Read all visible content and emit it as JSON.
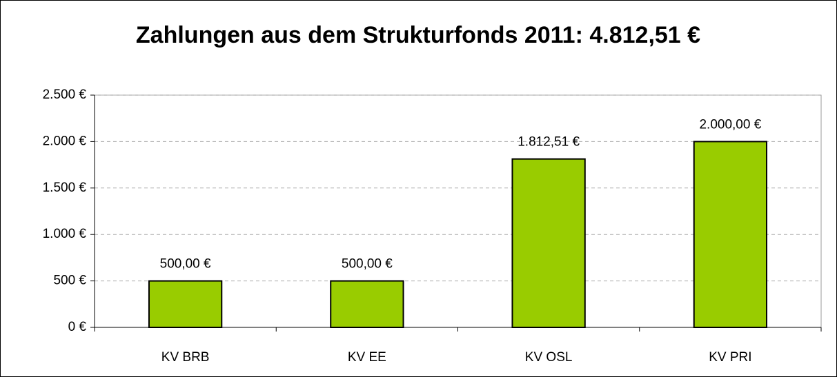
{
  "chart_data": {
    "type": "bar",
    "title": "Zahlungen aus dem Strukturfonds 2011: 4.812,51 €",
    "categories": [
      "KV BRB",
      "KV EE",
      "KV OSL",
      "KV PRI"
    ],
    "values": [
      500,
      500,
      1812.51,
      2000
    ],
    "value_labels": [
      "500,00 €",
      "500,00 €",
      "1.812,51 €",
      "2.000,00 €"
    ],
    "color": "#99cc00",
    "ylim": [
      0,
      2500
    ],
    "yticks": [
      {
        "value": 0,
        "label": "0 €"
      },
      {
        "value": 500,
        "label": "500 €"
      },
      {
        "value": 1000,
        "label": "1.000 €"
      },
      {
        "value": 1500,
        "label": "1.500 €"
      },
      {
        "value": 2000,
        "label": "2.000 €"
      },
      {
        "value": 2500,
        "label": "2.500 €"
      }
    ],
    "grid": true
  }
}
